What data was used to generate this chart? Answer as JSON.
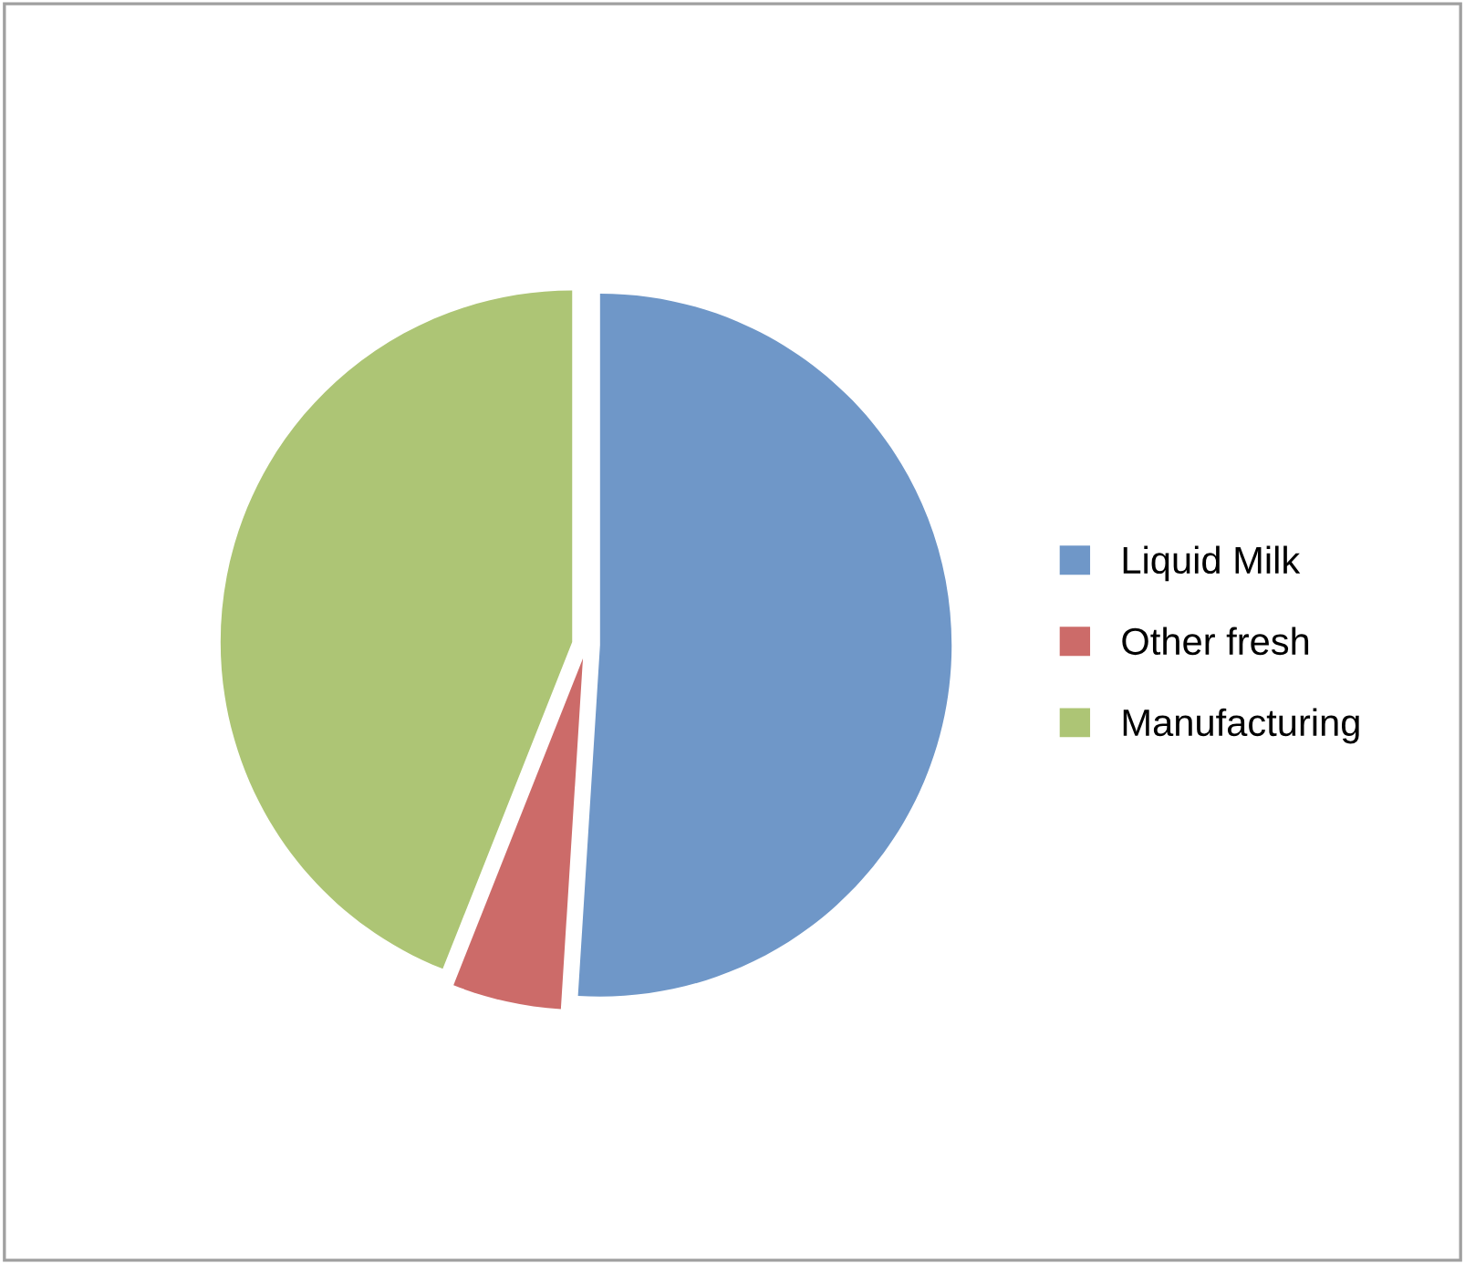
{
  "chart_data": {
    "type": "pie",
    "categories": [
      "Liquid Milk",
      "Other fresh",
      "Manufacturing"
    ],
    "values": [
      51,
      5,
      44
    ],
    "colors": [
      "#6f97c8",
      "#cc6b69",
      "#adc575"
    ],
    "legend": "right"
  }
}
